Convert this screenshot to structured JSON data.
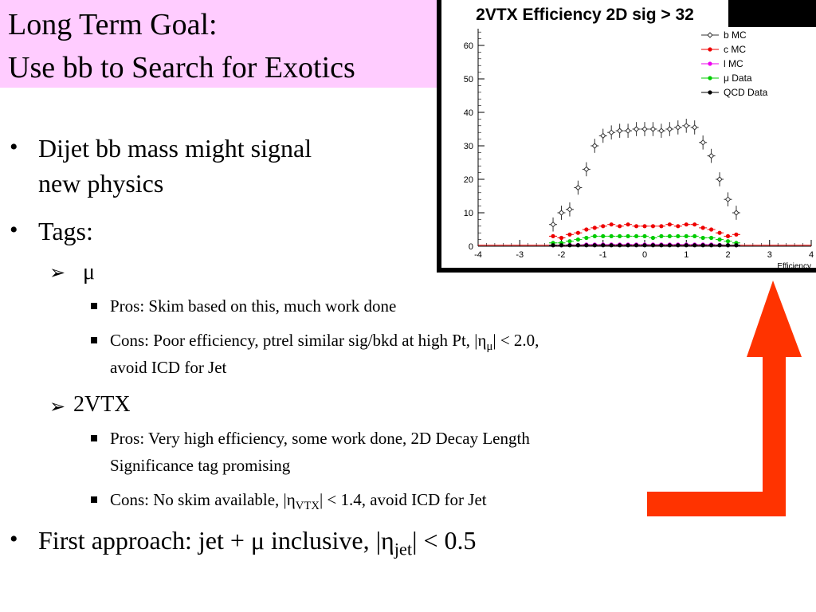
{
  "slide": {
    "title_line1": "Long Term Goal:",
    "title_line2": "Use bb to Search for Exotics",
    "bullets": {
      "b1_line1": "Dijet bb mass might signal",
      "b1_line2": "new physics",
      "b2": "Tags:",
      "mu_label": "μ",
      "mu_pros": "Pros: Skim based on this, much work done",
      "mu_cons_pre": "Cons: Poor efficiency, ptrel similar sig/bkd at high Pt, |η",
      "mu_cons_sub": "μ",
      "mu_cons_post": "| < 2.0,",
      "mu_cons_line2": "avoid ICD for Jet",
      "vtx_label": "2VTX",
      "vtx_pros_line1": "Pros: Very high efficiency, some work done, 2D Decay Length",
      "vtx_pros_line2": "Significance tag promising",
      "vtx_cons_pre": "Cons: No skim available, |η",
      "vtx_cons_sub": "VTX",
      "vtx_cons_post": "| < 1.4, avoid ICD for Jet",
      "b3_pre": "First approach: jet + μ inclusive, |η",
      "b3_sub": "jet",
      "b3_post": "| < 0.5"
    },
    "bullet_glyph": "•",
    "arrow_glyph": "➢",
    "arrow_color": "#ff3300"
  },
  "chart_data": {
    "type": "scatter",
    "title": "2VTX Efficiency 2D sig > 32",
    "xlabel": "Efficiency",
    "ylabel": "",
    "xlim": [
      -4,
      4
    ],
    "ylim": [
      0,
      65
    ],
    "xticks": [
      -4,
      -3,
      -2,
      -1,
      0,
      1,
      2,
      3,
      4
    ],
    "yticks": [
      0,
      10,
      20,
      30,
      40,
      50,
      60
    ],
    "legend_position": "top-right",
    "x": [
      -2.2,
      -2.0,
      -1.8,
      -1.6,
      -1.4,
      -1.2,
      -1.0,
      -0.8,
      -0.6,
      -0.4,
      -0.2,
      0.0,
      0.2,
      0.4,
      0.6,
      0.8,
      1.0,
      1.2,
      1.4,
      1.6,
      1.8,
      2.0,
      2.2
    ],
    "series": [
      {
        "name": "b MC",
        "color": "#333333",
        "marker": "open-diamond",
        "values": [
          6.5,
          10,
          11,
          17.5,
          23,
          30,
          33,
          34,
          34.5,
          34.5,
          35,
          35,
          35,
          34.5,
          35,
          35.5,
          36,
          35.5,
          31,
          27,
          20,
          14,
          10
        ]
      },
      {
        "name": "c MC",
        "color": "#ee0000",
        "marker": "circle",
        "values": [
          3,
          2.5,
          3.5,
          4,
          5,
          5.5,
          6,
          6.5,
          6,
          6.5,
          6,
          6,
          6,
          6,
          6.5,
          6,
          6.5,
          6.5,
          5.5,
          5,
          4,
          3,
          3.5
        ]
      },
      {
        "name": "l MC",
        "color": "#ee00ee",
        "marker": "circle",
        "values": [
          0.3,
          0.3,
          0.4,
          0.4,
          0.5,
          0.5,
          0.5,
          0.5,
          0.5,
          0.5,
          0.5,
          0.5,
          0.5,
          0.5,
          0.5,
          0.5,
          0.5,
          0.5,
          0.5,
          0.5,
          0.4,
          0.3,
          0.3
        ]
      },
      {
        "name": "μ Data",
        "color": "#00cc00",
        "marker": "circle",
        "values": [
          1,
          1,
          1.5,
          2,
          2.5,
          3,
          3,
          3,
          3,
          3,
          3,
          3,
          2.5,
          3,
          3,
          3,
          3,
          3,
          2.5,
          2.5,
          2,
          1.5,
          1
        ]
      },
      {
        "name": "QCD Data",
        "color": "#000000",
        "marker": "circle",
        "values": [
          0.3,
          0.3,
          0.3,
          0.3,
          0.3,
          0.3,
          0.3,
          0.3,
          0.3,
          0.3,
          0.3,
          0.3,
          0.3,
          0.3,
          0.3,
          0.3,
          0.3,
          0.3,
          0.3,
          0.3,
          0.3,
          0.3,
          0.3
        ]
      }
    ]
  }
}
